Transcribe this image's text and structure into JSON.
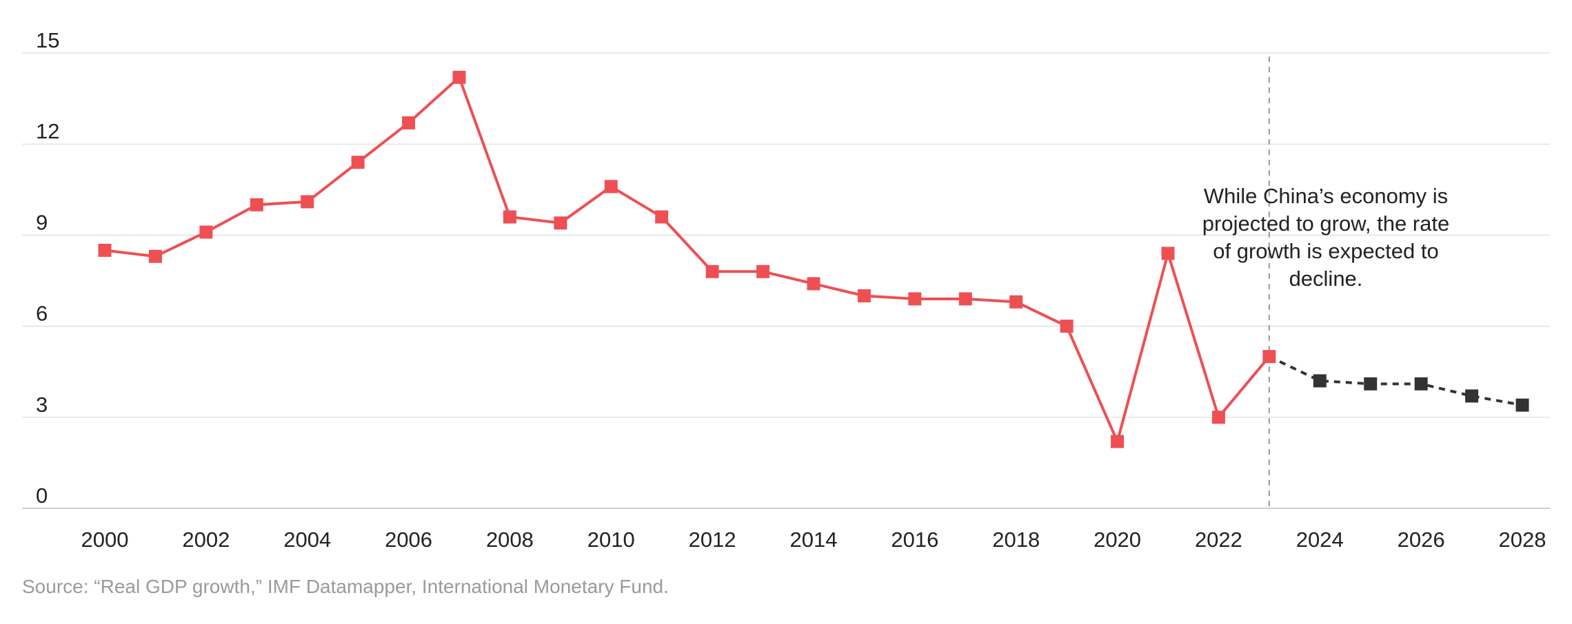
{
  "chart_data": {
    "type": "line",
    "title": "",
    "xlabel": "",
    "ylabel": "",
    "ylim": [
      0,
      15
    ],
    "xlim": [
      2000,
      2028
    ],
    "y_ticks": [
      0,
      3,
      6,
      9,
      12,
      15
    ],
    "x_ticks": [
      2000,
      2002,
      2004,
      2006,
      2008,
      2010,
      2012,
      2014,
      2016,
      2018,
      2020,
      2022,
      2024,
      2026,
      2028
    ],
    "grid": "horizontal",
    "series": [
      {
        "role": "actual",
        "color": "#ee4f53",
        "line_style": "solid",
        "marker": "square",
        "x": [
          2000,
          2001,
          2002,
          2003,
          2004,
          2005,
          2006,
          2007,
          2008,
          2009,
          2010,
          2011,
          2012,
          2013,
          2014,
          2015,
          2016,
          2017,
          2018,
          2019,
          2020,
          2021,
          2022,
          2023
        ],
        "y": [
          8.5,
          8.3,
          9.1,
          10.0,
          10.1,
          11.4,
          12.7,
          14.2,
          9.6,
          9.4,
          10.6,
          9.6,
          7.8,
          7.8,
          7.4,
          7.0,
          6.9,
          6.9,
          6.8,
          6.0,
          2.2,
          8.4,
          3.0,
          5.0
        ]
      },
      {
        "role": "projection",
        "color": "#333333",
        "line_style": "dashed",
        "marker": "square",
        "x": [
          2023,
          2024,
          2025,
          2026,
          2027,
          2028
        ],
        "y": [
          5.0,
          4.2,
          4.1,
          4.1,
          3.7,
          3.4
        ]
      }
    ],
    "divider": {
      "x": 2023,
      "style": "dashed",
      "color": "#999999"
    },
    "annotation": {
      "lines": [
        "While China’s economy is",
        "projected to grow, the rate",
        "of growth is expected to",
        "decline."
      ]
    },
    "source": "Source: “Real GDP growth,” IMF Datamapper, International Monetary Fund."
  }
}
